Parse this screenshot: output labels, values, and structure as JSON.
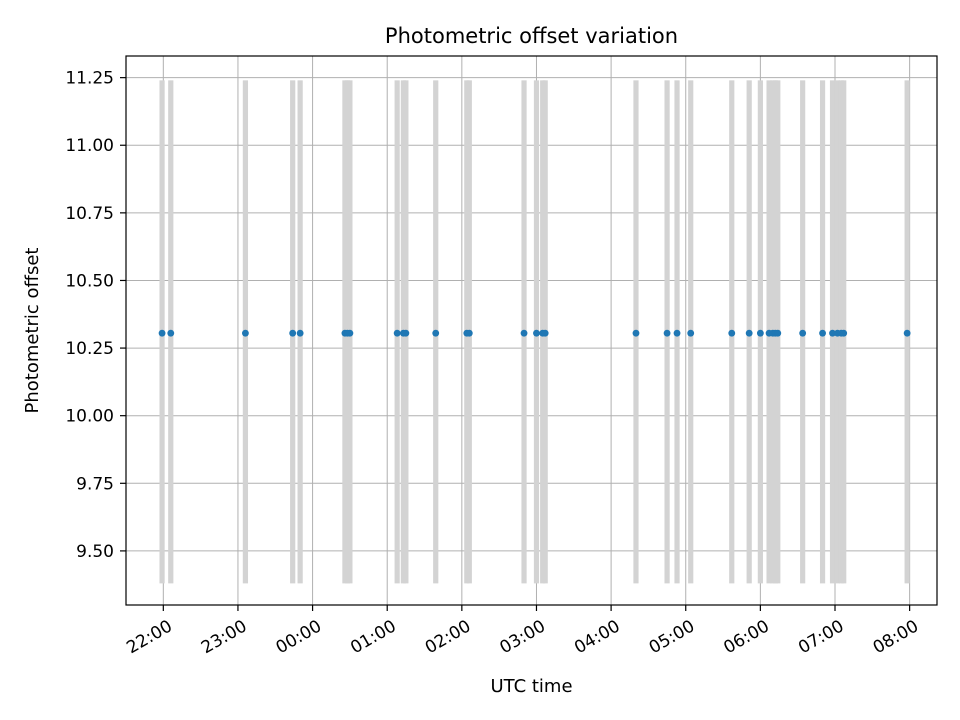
{
  "chart_data": {
    "type": "scatter",
    "title": "Photometric offset variation",
    "xlabel": "UTC time",
    "ylabel": "Photometric offset",
    "xlim": [
      "21:30",
      "08:22"
    ],
    "ylim": [
      9.3,
      11.33
    ],
    "grid": true,
    "x_tick_labels": [
      "22:00",
      "23:00",
      "00:00",
      "01:00",
      "02:00",
      "03:00",
      "04:00",
      "05:00",
      "06:00",
      "07:00",
      "08:00"
    ],
    "y_tick_labels": [
      "9.50",
      "9.75",
      "10.00",
      "10.25",
      "10.50",
      "10.75",
      "11.00",
      "11.25"
    ],
    "y_ticks": [
      9.5,
      9.75,
      10.0,
      10.25,
      10.5,
      10.75,
      11.0,
      11.25
    ],
    "point_color": "#1f77b4",
    "band_color": "#d3d3d3",
    "band_range": [
      9.38,
      11.24
    ],
    "points": [
      {
        "x": "21:59",
        "y": 10.305
      },
      {
        "x": "22:06",
        "y": 10.305
      },
      {
        "x": "23:06",
        "y": 10.305
      },
      {
        "x": "23:44",
        "y": 10.305
      },
      {
        "x": "23:50",
        "y": 10.305
      },
      {
        "x": "00:26",
        "y": 10.305
      },
      {
        "x": "00:28",
        "y": 10.305
      },
      {
        "x": "00:30",
        "y": 10.305
      },
      {
        "x": "01:08",
        "y": 10.305
      },
      {
        "x": "01:13",
        "y": 10.305
      },
      {
        "x": "01:15",
        "y": 10.305
      },
      {
        "x": "01:39",
        "y": 10.305
      },
      {
        "x": "02:04",
        "y": 10.305
      },
      {
        "x": "02:06",
        "y": 10.305
      },
      {
        "x": "02:50",
        "y": 10.305
      },
      {
        "x": "03:00",
        "y": 10.305
      },
      {
        "x": "03:05",
        "y": 10.305
      },
      {
        "x": "03:07",
        "y": 10.305
      },
      {
        "x": "04:20",
        "y": 10.305
      },
      {
        "x": "04:45",
        "y": 10.305
      },
      {
        "x": "04:53",
        "y": 10.305
      },
      {
        "x": "05:04",
        "y": 10.305
      },
      {
        "x": "05:37",
        "y": 10.305
      },
      {
        "x": "05:51",
        "y": 10.305
      },
      {
        "x": "06:00",
        "y": 10.305
      },
      {
        "x": "06:07",
        "y": 10.305
      },
      {
        "x": "06:10",
        "y": 10.305
      },
      {
        "x": "06:12",
        "y": 10.305
      },
      {
        "x": "06:14",
        "y": 10.305
      },
      {
        "x": "06:34",
        "y": 10.305
      },
      {
        "x": "06:50",
        "y": 10.305
      },
      {
        "x": "06:58",
        "y": 10.305
      },
      {
        "x": "07:02",
        "y": 10.305
      },
      {
        "x": "07:05",
        "y": 10.305
      },
      {
        "x": "07:07",
        "y": 10.305
      },
      {
        "x": "07:58",
        "y": 10.305
      }
    ]
  }
}
